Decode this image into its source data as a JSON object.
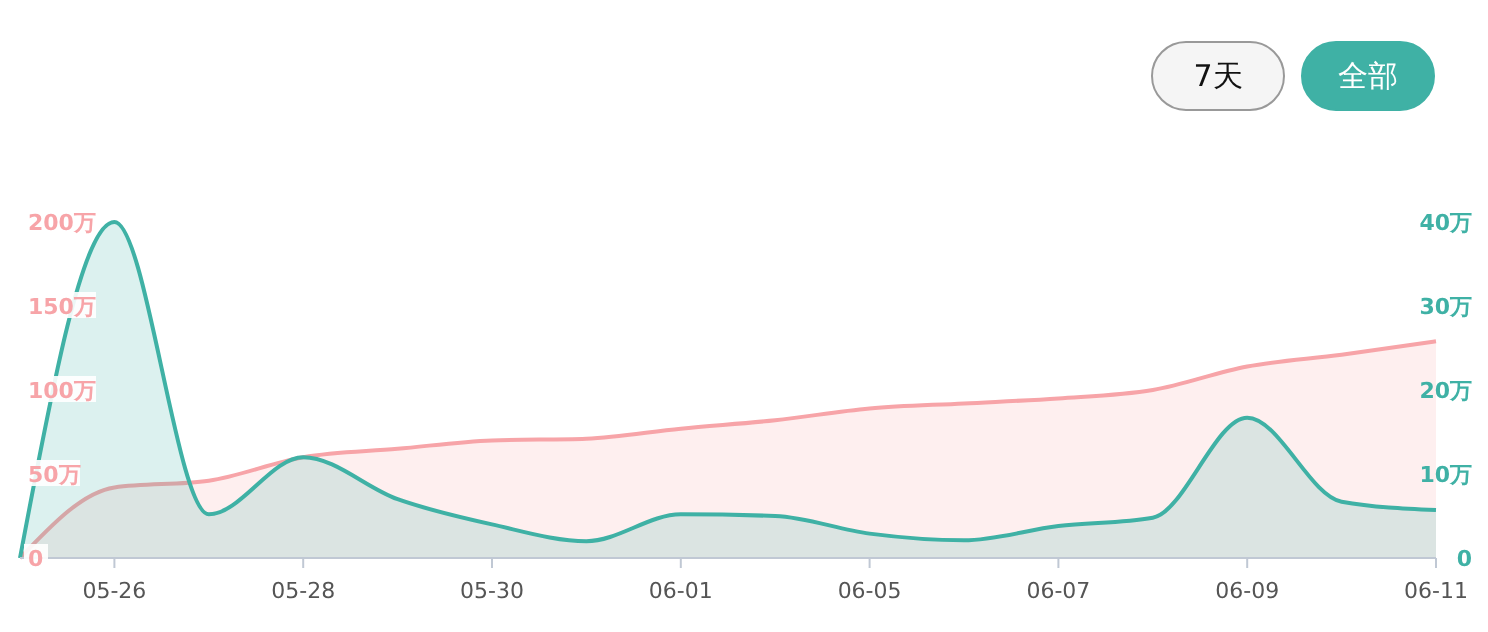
{
  "chart_data": {
    "type": "area",
    "categories": [
      null,
      "05-26",
      null,
      "05-28",
      null,
      "05-30",
      null,
      "06-01",
      null,
      "06-05",
      null,
      "06-07",
      null,
      "06-09",
      null,
      "06-11"
    ],
    "series": [
      {
        "color": "#f7a4a8",
        "values": [
          0,
          42,
          46,
          60,
          65,
          70,
          71,
          77,
          82,
          89,
          92,
          95,
          100,
          114,
          121,
          129
        ]
      },
      {
        "color": "#3fb1a5",
        "axis": "y2",
        "values": [
          0,
          40,
          5.2,
          12,
          7,
          4,
          2,
          5.2,
          5,
          2.9,
          2.1,
          3.8,
          4.8,
          16.7,
          6.7,
          5.7
        ]
      }
    ],
    "ylim": [
      0,
      200
    ],
    "yticks": [
      0,
      {
        "value": 50,
        "label": "50万"
      },
      {
        "value": 100,
        "label": "100万"
      },
      {
        "value": 150,
        "label": "150万"
      },
      {
        "value": 200,
        "label": "200万"
      }
    ],
    "y2lim": [
      0,
      40
    ],
    "y2ticks": [
      0,
      {
        "value": 10,
        "label": "10万"
      },
      {
        "value": 20,
        "label": "20万"
      },
      {
        "value": 30,
        "label": "30万"
      },
      {
        "value": 40,
        "label": "40万"
      }
    ],
    "annotations": [
      "7天",
      "全部"
    ],
    "grid": false
  }
}
